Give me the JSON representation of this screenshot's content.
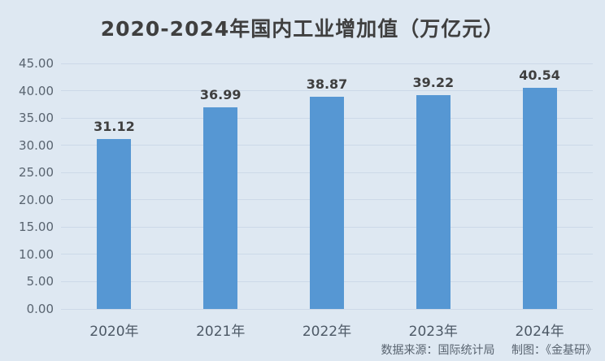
{
  "title": "2020-2024年国内工业增加值（万亿元）",
  "chart_data": {
    "type": "bar",
    "title": "2020-2024年国内工业增加值（万亿元）",
    "categories": [
      "2020年",
      "2021年",
      "2022年",
      "2023年",
      "2024年"
    ],
    "values": [
      31.12,
      36.99,
      38.87,
      39.22,
      40.54
    ],
    "value_labels": [
      "31.12",
      "36.99",
      "38.87",
      "39.22",
      "40.54"
    ],
    "xlabel": "",
    "ylabel": "",
    "ylim": [
      0,
      45
    ],
    "ytick_step": 5,
    "yticks": [
      "0.00",
      "5.00",
      "10.00",
      "15.00",
      "20.00",
      "25.00",
      "30.00",
      "35.00",
      "40.00",
      "45.00"
    ],
    "grid": true,
    "legend": false,
    "bar_color": "#5697d3",
    "gridline_color": "#ccd9e8",
    "background_color": "#dee8f2"
  },
  "footer": {
    "source_label": "数据来源：国际统计局",
    "credit_label": "制图：《金基研》"
  }
}
